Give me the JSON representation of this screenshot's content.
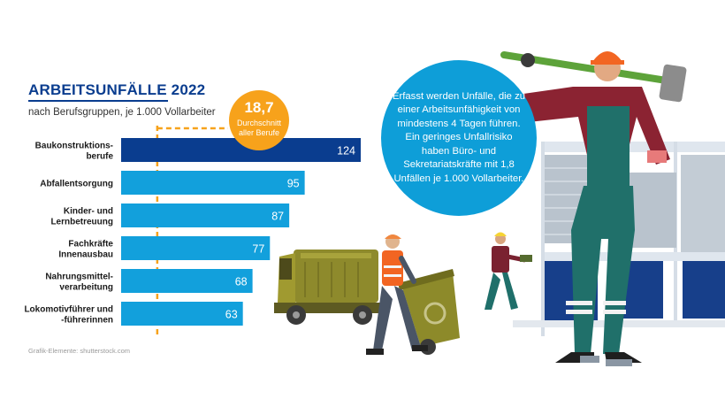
{
  "header": {
    "title": "ARBEITSUNFÄLLE 2022",
    "subtitle": "nach Berufsgruppen, je 1.000 Vollarbeiter"
  },
  "average": {
    "value": "18,7",
    "label_line1": "Durchschnitt",
    "label_line2": "aller Berufe"
  },
  "info": {
    "text": "Erfasst werden Unfälle, die zu einer Arbeitsunfähigkeit von mindestens 4 Tagen führen. Ein geringes Unfallrisiko haben Büro- und Sekretariatskräfte mit 1,8 Unfällen je 1.000 Vollarbeiter."
  },
  "credit": "Grafik-Elemente: shutterstock.com",
  "colors": {
    "title": "#0a3d8f",
    "bar_highlight": "#0a3d8f",
    "bar_default": "#12a0dc",
    "average": "#f7a21b"
  },
  "chart_data": {
    "type": "bar",
    "orientation": "horizontal",
    "title": "ARBEITSUNFÄLLE 2022",
    "subtitle": "nach Berufsgruppen, je 1.000 Vollarbeiter",
    "categories": [
      [
        "Baukonstruktions-",
        "berufe"
      ],
      [
        "Abfallentsorgung"
      ],
      [
        "Kinder- und",
        "Lernbetreuung"
      ],
      [
        "Fachkräfte",
        "Innenausbau"
      ],
      [
        "Nahrungsmittel-",
        "verarbeitung"
      ],
      [
        "Lokomotivführer und",
        "-führerinnen"
      ]
    ],
    "values": [
      124,
      95,
      87,
      77,
      68,
      63
    ],
    "value_labels": [
      "124",
      "95",
      "87",
      "77",
      "68",
      "63"
    ],
    "highlight_index": 0,
    "reference_line": {
      "value": 18.7,
      "label": "18,7 Durchschnitt aller Berufe"
    },
    "xlim": [
      0,
      124
    ],
    "xlabel": "",
    "ylabel": "",
    "grid": false
  }
}
